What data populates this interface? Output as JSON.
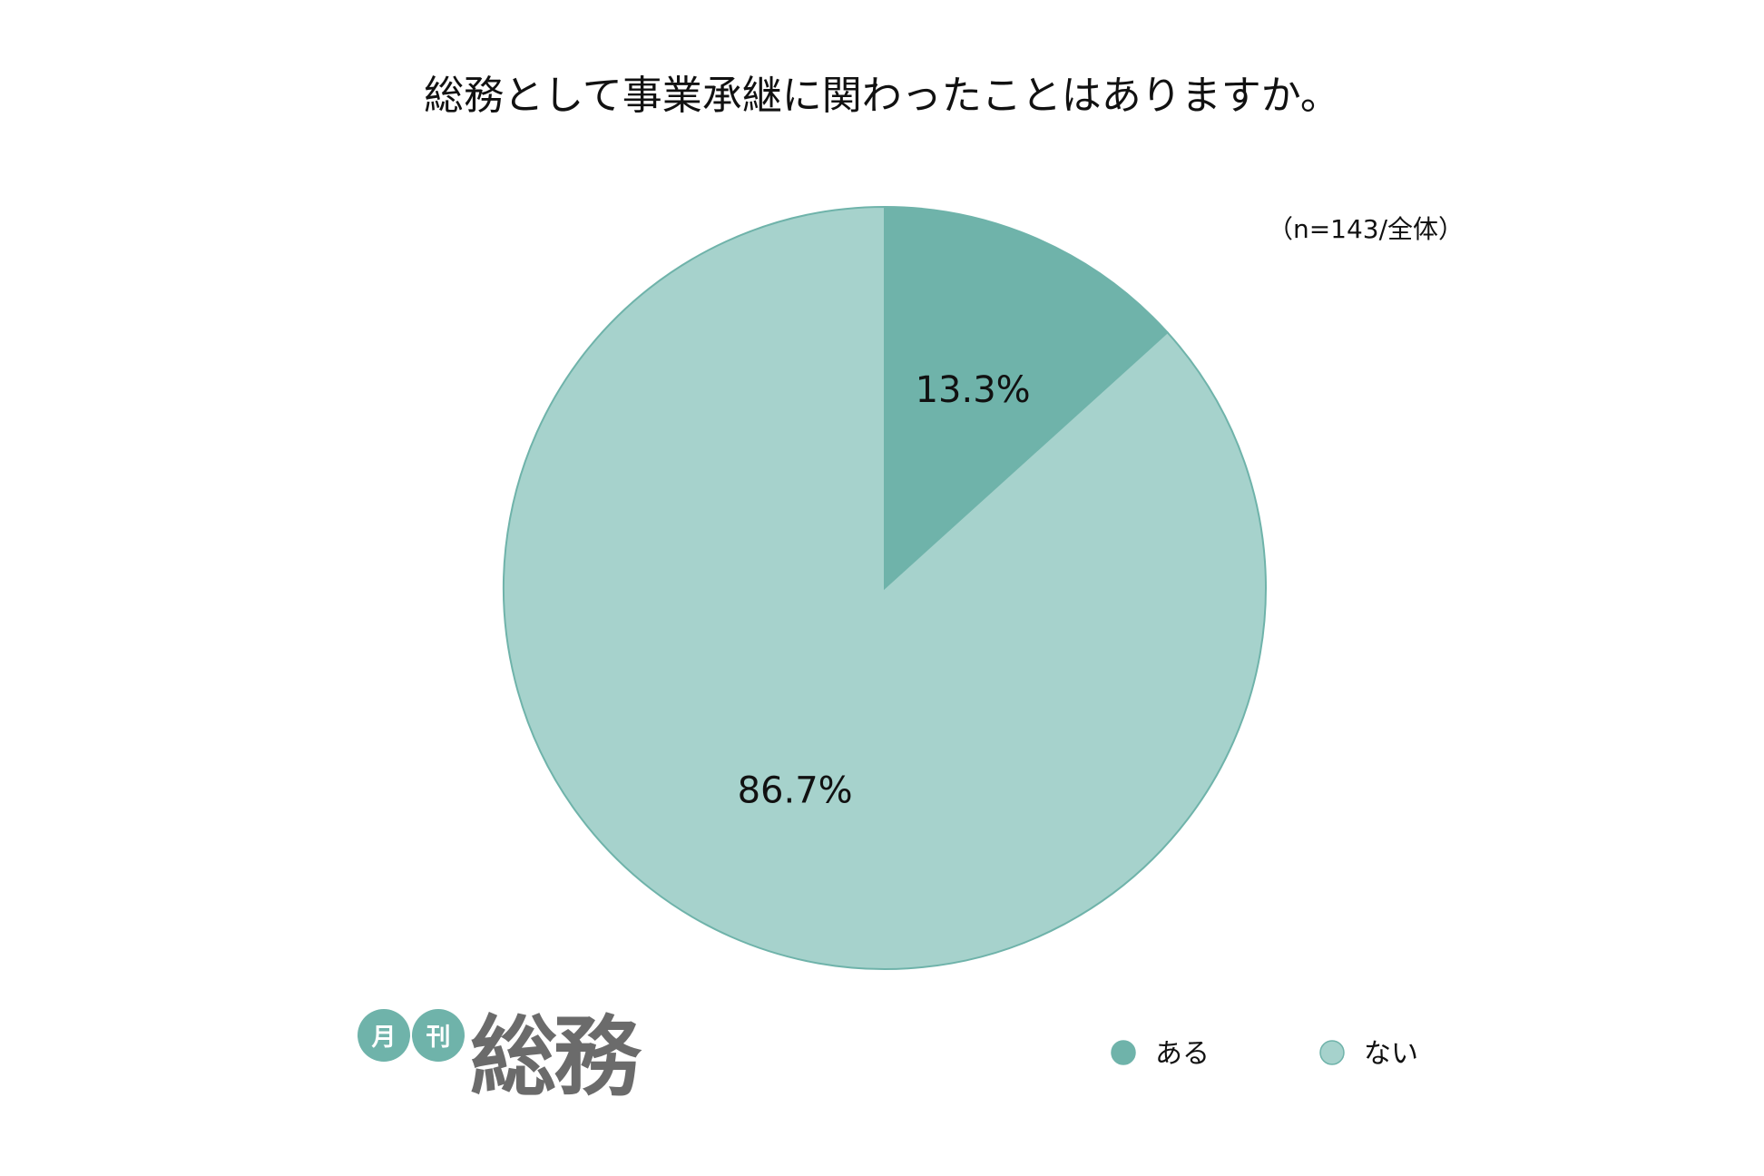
{
  "chart_data": {
    "type": "pie",
    "title": "総務として事業承継に関わったことはありますか。",
    "note": "（n=143/全体）",
    "slices": [
      {
        "label": "ある",
        "value": 13.3,
        "display": "13.3%",
        "color": "#6fb3aa"
      },
      {
        "label": "ない",
        "value": 86.7,
        "display": "86.7%",
        "color": "#a6d2cc"
      }
    ],
    "legend_position": "bottom-right",
    "edge_color": "#6fb3aa"
  },
  "logo": {
    "text": "月刊総務",
    "badge_1": "月",
    "badge_2": "刊",
    "wordmark": "総務",
    "badge_color": "#6fb3aa",
    "wordmark_color": "#6b6b6b"
  }
}
